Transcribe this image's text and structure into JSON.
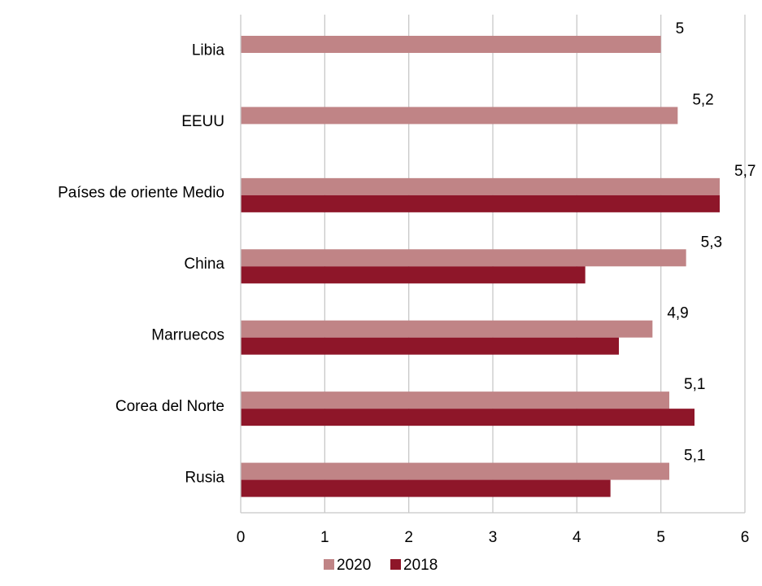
{
  "chart_data": {
    "type": "bar",
    "orientation": "horizontal",
    "categories": [
      "Libia",
      "EEUU",
      "Países de oriente Medio",
      "China",
      "Marruecos",
      "Corea del Norte",
      "Rusia"
    ],
    "series": [
      {
        "name": "2020",
        "color": "#c08486",
        "values": [
          5,
          5.2,
          5.7,
          5.3,
          4.9,
          5.1,
          5.1
        ],
        "data_labels": [
          "5",
          "5,2",
          "5,7",
          "5,3",
          "4,9",
          "5,1",
          "5,1"
        ]
      },
      {
        "name": "2018",
        "color": "#8e1629",
        "values": [
          null,
          null,
          5.7,
          4.1,
          4.5,
          5.4,
          4.4
        ]
      }
    ],
    "xlim": [
      0,
      6
    ],
    "x_ticks": [
      "0",
      "1",
      "2",
      "3",
      "4",
      "5",
      "6"
    ],
    "grid": true,
    "legend_position": "bottom",
    "title": "",
    "xlabel": "",
    "ylabel": ""
  }
}
